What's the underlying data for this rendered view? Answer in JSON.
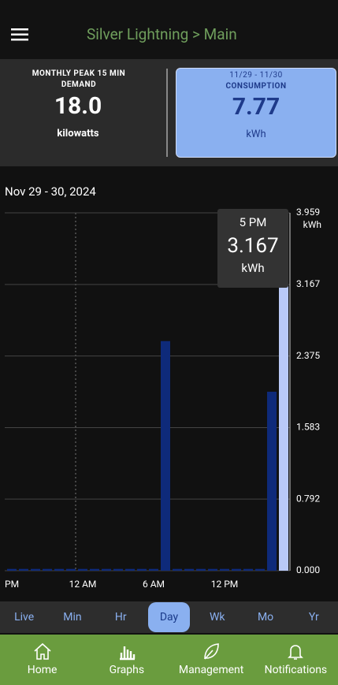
{
  "header": {
    "title": "Silver Lightning > Main"
  },
  "cards": [
    {
      "caption": "MONTHLY PEAK 15 MIN DEMAND",
      "value": "18.0",
      "unit": "kilowatts"
    },
    {
      "period": "11/29 - 11/30",
      "caption": "CONSUMPTION",
      "value": "7.77",
      "unit": "kWh"
    }
  ],
  "chart_data": {
    "type": "bar",
    "title": "Nov 29 - 30, 2024",
    "categories": [
      "PM",
      null,
      null,
      null,
      null,
      null,
      "12 AM",
      null,
      null,
      null,
      null,
      null,
      "6 AM",
      null,
      null,
      null,
      null,
      null,
      "12 PM",
      null,
      null,
      null,
      null,
      null
    ],
    "values": [
      0.02,
      0.02,
      0.02,
      0.02,
      0.02,
      0.02,
      0.02,
      0.02,
      0.02,
      0.02,
      0.02,
      0.02,
      0.02,
      2.54,
      0.02,
      0.02,
      0.02,
      0.02,
      0.02,
      0.02,
      0.02,
      0.02,
      1.98,
      3.167
    ],
    "color": "#0e2a7a",
    "highlight_color": "#b9c9f7",
    "selected": 23,
    "tooltip": {
      "label": "5 PM",
      "unit": "kWh"
    },
    "y_unit": "kWh",
    "ylim": [
      0,
      3.959
    ],
    "yticks": [
      {
        "value": 0,
        "label": "0.000"
      },
      0.792,
      1.583,
      2.375,
      3.167,
      3.959
    ],
    "grid": true
  },
  "tabs": [
    "Live",
    "Min",
    "Hr",
    "Day",
    "Wk",
    "Mo",
    "Yr"
  ],
  "active_tab": 3,
  "nav": [
    "Home",
    "Graphs",
    "Management",
    "Notifications"
  ]
}
